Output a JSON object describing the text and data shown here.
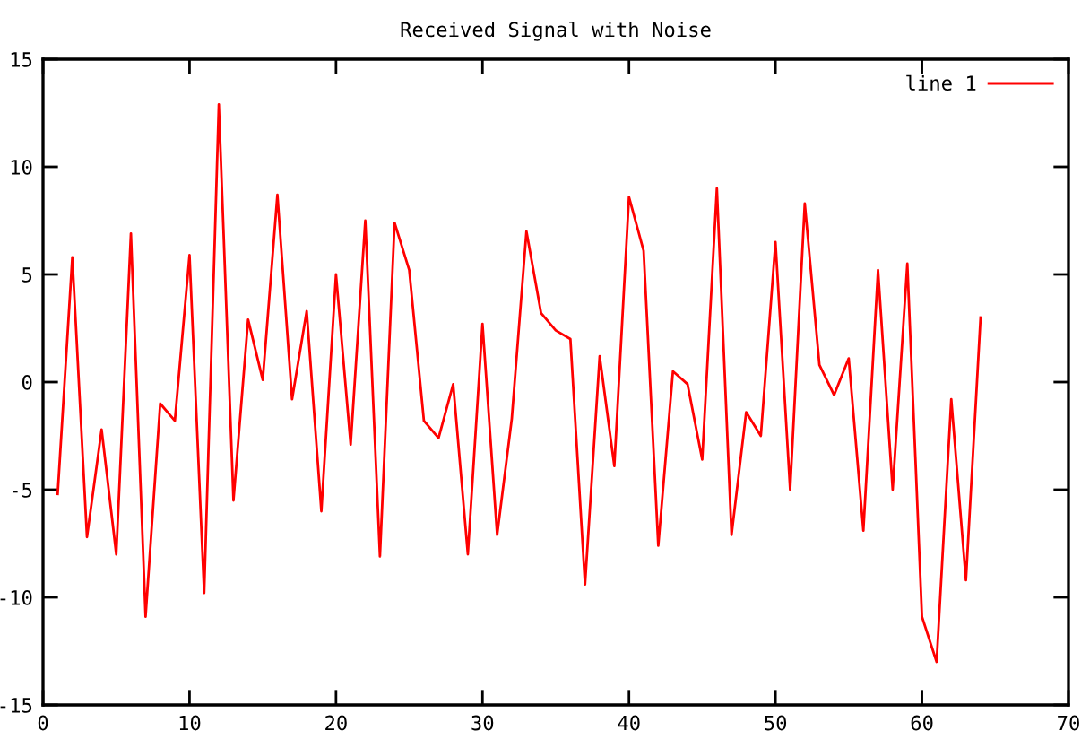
{
  "chart_data": {
    "type": "line",
    "title": "Received Signal with Noise",
    "x": [
      1,
      2,
      3,
      4,
      5,
      6,
      7,
      8,
      9,
      10,
      11,
      12,
      13,
      14,
      15,
      16,
      17,
      18,
      19,
      20,
      21,
      22,
      23,
      24,
      25,
      26,
      27,
      28,
      29,
      30,
      31,
      32,
      33,
      34,
      35,
      36,
      37,
      38,
      39,
      40,
      41,
      42,
      43,
      44,
      45,
      46,
      47,
      48,
      49,
      50,
      51,
      52,
      53,
      54,
      55,
      56,
      57,
      58,
      59,
      60,
      61,
      62,
      63,
      64
    ],
    "series": [
      {
        "name": "line 1",
        "color": "#ff0000",
        "values": [
          -5.2,
          5.8,
          -7.2,
          -2.2,
          -8.0,
          6.9,
          -10.9,
          -1.0,
          -1.8,
          5.9,
          -9.8,
          12.9,
          -5.5,
          2.9,
          0.1,
          8.7,
          -0.8,
          3.3,
          -6.0,
          5.0,
          -2.9,
          7.5,
          -8.1,
          7.4,
          5.2,
          -1.8,
          -2.6,
          -0.1,
          -8.0,
          2.7,
          -7.1,
          -1.7,
          7.0,
          3.2,
          2.4,
          2.0,
          -9.4,
          1.2,
          -3.9,
          8.6,
          6.1,
          -7.6,
          0.5,
          -0.1,
          -3.6,
          9.0,
          -7.1,
          -1.4,
          -2.5,
          6.5,
          -5.0,
          8.3,
          0.8,
          -0.6,
          1.1,
          -6.9,
          5.2,
          -5.0,
          5.5,
          -10.9,
          -13.0,
          -0.8,
          -9.2,
          3.0
        ]
      }
    ],
    "xlim": [
      0,
      70
    ],
    "xticks": [
      0,
      10,
      20,
      30,
      40,
      50,
      60,
      70
    ],
    "ylim": [
      -15,
      15
    ],
    "yticks": [
      -15,
      -10,
      -5,
      0,
      5,
      10,
      15
    ],
    "grid": false,
    "legend": "top right",
    "marker": "none",
    "line_style": "solid"
  }
}
